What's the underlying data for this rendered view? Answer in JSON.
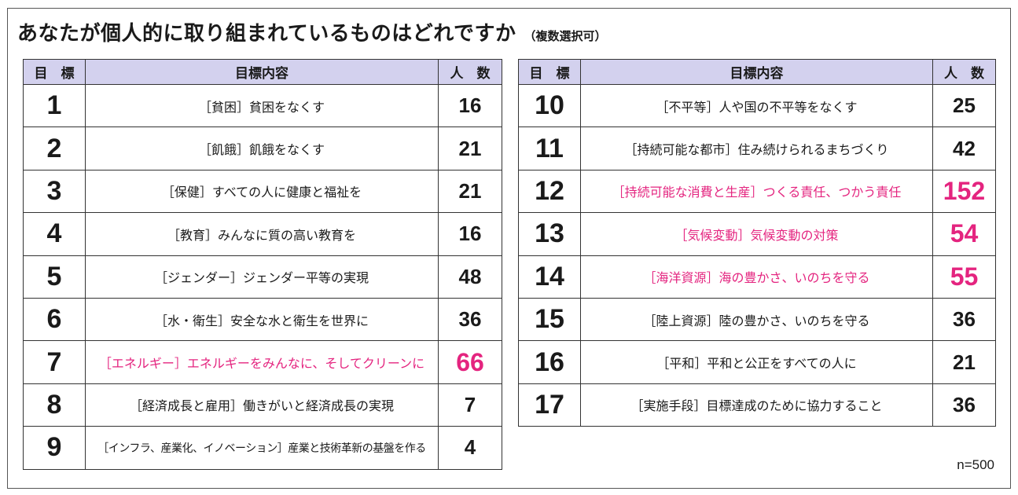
{
  "title": {
    "main": "あなたが個人的に取り組まれているものはどれですか",
    "sub": "（複数選択可）"
  },
  "headers": {
    "goal": "目　標",
    "content": "目標内容",
    "count": "人　数"
  },
  "highlight_color": "#e4247f",
  "header_bg": "#d3d1ee",
  "left_rows": [
    {
      "goal": "1",
      "content": "［貧困］貧困をなくす",
      "count": "16",
      "highlight": false
    },
    {
      "goal": "2",
      "content": "［飢餓］飢餓をなくす",
      "count": "21",
      "highlight": false
    },
    {
      "goal": "3",
      "content": "［保健］すべての人に健康と福祉を",
      "count": "21",
      "highlight": false
    },
    {
      "goal": "4",
      "content": "［教育］みんなに質の高い教育を",
      "count": "16",
      "highlight": false
    },
    {
      "goal": "5",
      "content": "［ジェンダー］ジェンダー平等の実現",
      "count": "48",
      "highlight": false
    },
    {
      "goal": "6",
      "content": "［水・衛生］安全な水と衛生を世界に",
      "count": "36",
      "highlight": false
    },
    {
      "goal": "7",
      "content": "［エネルギー］エネルギーをみんなに、そしてクリーンに",
      "count": "66",
      "highlight": true
    },
    {
      "goal": "8",
      "content": "［経済成長と雇用］働きがいと経済成長の実現",
      "count": "7",
      "highlight": false
    },
    {
      "goal": "9",
      "content": "［インフラ、産業化、イノベーション］産業と技術革新の基盤を作る",
      "count": "4",
      "highlight": false
    }
  ],
  "right_rows": [
    {
      "goal": "10",
      "content": "［不平等］人や国の不平等をなくす",
      "count": "25",
      "highlight": false
    },
    {
      "goal": "11",
      "content": "［持続可能な都市］住み続けられるまちづくり",
      "count": "42",
      "highlight": false
    },
    {
      "goal": "12",
      "content": "［持続可能な消費と生産］つくる責任、つかう責任",
      "count": "152",
      "highlight": true
    },
    {
      "goal": "13",
      "content": "［気候変動］気候変動の対策",
      "count": "54",
      "highlight": true
    },
    {
      "goal": "14",
      "content": "［海洋資源］海の豊かさ、いのちを守る",
      "count": "55",
      "highlight": true
    },
    {
      "goal": "15",
      "content": "［陸上資源］陸の豊かさ、いのちを守る",
      "count": "36",
      "highlight": false
    },
    {
      "goal": "16",
      "content": "［平和］平和と公正をすべての人に",
      "count": "21",
      "highlight": false
    },
    {
      "goal": "17",
      "content": "［実施手段］目標達成のために協力すること",
      "count": "36",
      "highlight": false
    }
  ],
  "sample_size": "n=500"
}
